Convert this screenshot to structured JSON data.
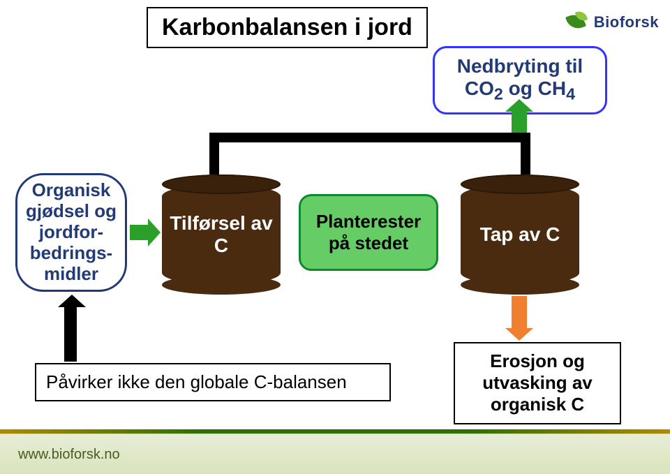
{
  "title": "Karbonbalansen i jord",
  "logo_text": "Bioforsk",
  "footer_url": "www.bioforsk.no",
  "diagram": {
    "type": "flowchart",
    "background_color": "#ffffff",
    "nodes": {
      "output": {
        "line1": "Nedbryting til",
        "line2_html": "CO<sub>2</sub> og CH<sub>4</sub>",
        "border_color": "#3333ff",
        "text_color": "#223b77",
        "fontsize": 28
      },
      "organic": {
        "text_html": "Organisk gjødsel og jordfor-bedrings-midler",
        "border_color": "#223b77",
        "text_color": "#223b77",
        "fontsize": 26
      },
      "cyl_in": {
        "text_html": "Tilførsel av C",
        "fill": "#4a2b10",
        "top_fill": "#3a210c",
        "text_color": "#ffffff",
        "fontsize": 28
      },
      "plant": {
        "text_html": "Planterester på stedet",
        "fill": "#66cc66",
        "border_color": "#0a8a2a",
        "text_color": "#000000",
        "fontsize": 26
      },
      "cyl_out": {
        "text_html": "Tap av C",
        "fill": "#4a2b10",
        "top_fill": "#3a210c",
        "text_color": "#ffffff",
        "fontsize": 28
      },
      "caption": {
        "text": "Påvirker ikke den globale C-balansen",
        "border_color": "#000000",
        "fontsize": 26
      },
      "erosion": {
        "text_html": "Erosjon og utvasking av organisk C",
        "border_color": "#000000",
        "fontsize": 26
      }
    },
    "arrows": {
      "organic_to_cyl": {
        "color": "#2aa02a"
      },
      "cyl_to_output": {
        "color": "#2aa02a"
      },
      "cyl_to_erosion": {
        "color": "#f08030"
      },
      "caption_to_organic": {
        "color": "#000000"
      }
    },
    "connector_color": "#000000"
  },
  "colors": {
    "footer_band_top": "#e8edd6",
    "footer_band_bottom": "#d9e3bd",
    "footer_accent_a": "#b08a00",
    "footer_accent_b": "#2e6f00",
    "leaf_dark": "#3a8a1c",
    "leaf_light": "#8cc63f",
    "logo_text": "#223b77"
  }
}
